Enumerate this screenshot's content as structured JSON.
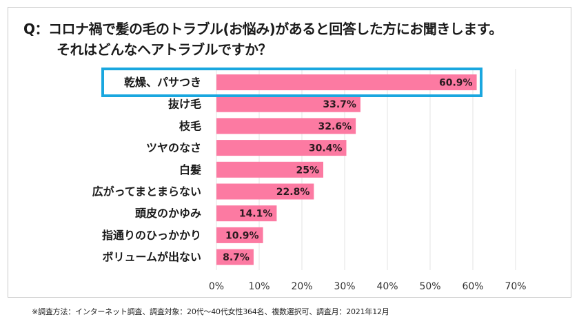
{
  "title": {
    "line1": "Q：コロナ禍で髪の毛のトラブル(お悩み)があると回答した方にお聞きします。",
    "line2": "それはどんなヘアトラブルですか？"
  },
  "footnote": "※調査方法：インターネット調査、調査対象：20代～40代女性364名、複数選択可、調査月：2021年12月",
  "colors": {
    "bar": "#fc7aa2",
    "highlight": "#1aa7df",
    "grid": "#e3e3e3"
  },
  "chart_data": {
    "type": "bar",
    "orientation": "horizontal",
    "title": "Q：コロナ禍で髪の毛のトラブル(お悩み)があると回答した方にお聞きします。それはどんなヘアトラブルですか？",
    "categories": [
      "乾燥、パサつき",
      "抜け毛",
      "枝毛",
      "ツヤのなさ",
      "白髪",
      "広がってまとまらない",
      "頭皮のかゆみ",
      "指通りのひっかかり",
      "ボリュームが出ない"
    ],
    "values": [
      60.9,
      33.7,
      32.6,
      30.4,
      25,
      22.8,
      14.1,
      10.9,
      8.7
    ],
    "value_labels": [
      "60.9%",
      "33.7%",
      "32.6%",
      "30.4%",
      "25%",
      "22.8%",
      "14.1%",
      "10.9%",
      "8.7%"
    ],
    "highlighted_category": "乾燥、パサつき",
    "xlabel": "",
    "ylabel": "",
    "xlim": [
      0,
      70
    ],
    "xticks": [
      0,
      10,
      20,
      30,
      40,
      50,
      60,
      70
    ],
    "xtick_labels": [
      "0%",
      "10%",
      "20%",
      "30%",
      "40%",
      "50%",
      "60%",
      "70%"
    ],
    "grid": true,
    "legend": "none",
    "unit": "%"
  }
}
